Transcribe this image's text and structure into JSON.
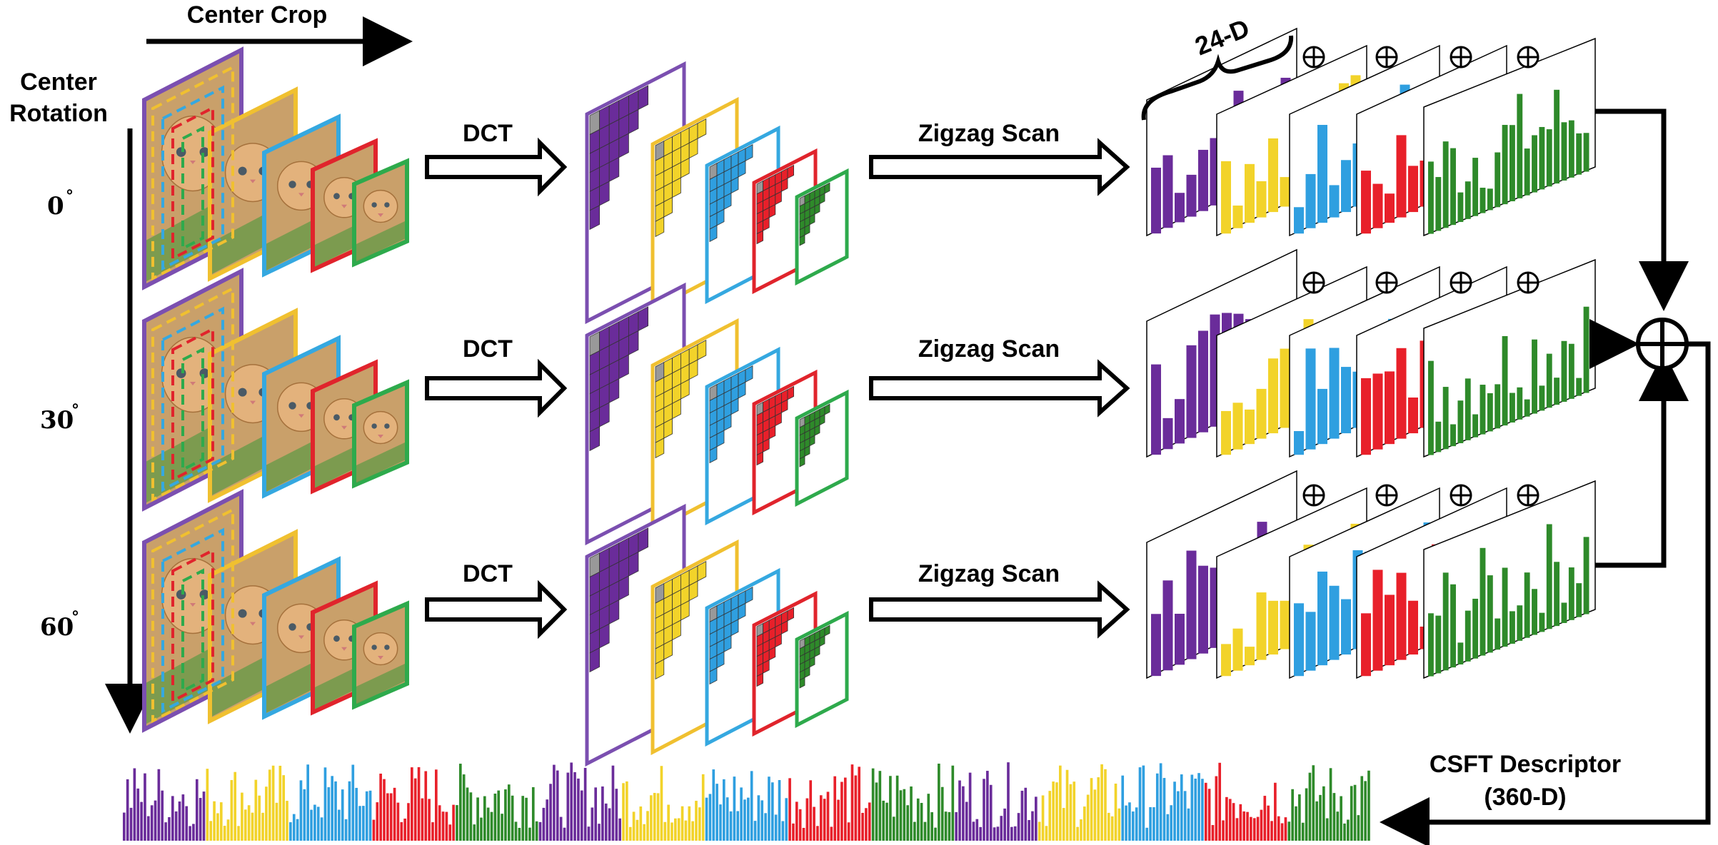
{
  "labels": {
    "center_crop": "Center Crop",
    "center_rotation_line1": "Center",
    "center_rotation_line2": "Rotation",
    "dct": "DCT",
    "zigzag": "Zigzag Scan",
    "dim": "24-D",
    "descriptor_line1": "CSFT Descriptor",
    "descriptor_line2": "(360-D)",
    "oplus": "⊕"
  },
  "angles": [
    "0",
    "30",
    "60"
  ],
  "degree_symbol": "°",
  "colors": {
    "purple": "#6a2c9a",
    "yellow": "#f2d32a",
    "blue": "#2f9fe0",
    "red": "#e8202a",
    "green": "#2e8a2a",
    "frame_purple": "#7b4fb0",
    "frame_yellow": "#f0c030",
    "frame_blue": "#35a8e0",
    "frame_red": "#e0242c",
    "frame_green": "#2eaa4c",
    "image_fill": "#c9a06a",
    "grass": "#6f9a4a"
  },
  "layers": [
    "purple",
    "yellow",
    "blue",
    "red",
    "green"
  ]
}
